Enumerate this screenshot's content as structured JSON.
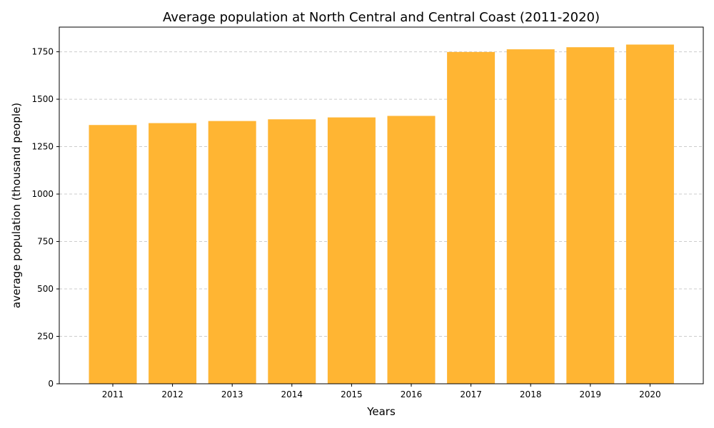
{
  "chart_data": {
    "type": "bar",
    "title": "Average population at North Central and Central Coast (2011-2020)",
    "xlabel": "Years",
    "ylabel": "average population (thousand people)",
    "categories": [
      "2011",
      "2012",
      "2013",
      "2014",
      "2015",
      "2016",
      "2017",
      "2018",
      "2019",
      "2020"
    ],
    "values": [
      1364,
      1374,
      1385,
      1394,
      1404,
      1412,
      1749,
      1763,
      1774,
      1788
    ],
    "ylim": [
      0,
      1880
    ],
    "yticks": [
      0,
      250,
      500,
      750,
      1000,
      1250,
      1500,
      1750
    ],
    "ytick_labels": [
      "0",
      "250",
      "500",
      "750",
      "1000",
      "1250",
      "1500",
      "1750"
    ],
    "grid": "y-dashed",
    "bar_color": "#FFB533"
  }
}
